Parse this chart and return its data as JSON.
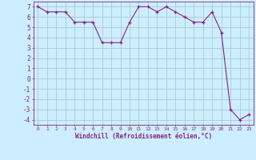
{
  "x": [
    0,
    1,
    2,
    3,
    4,
    5,
    6,
    7,
    8,
    9,
    10,
    11,
    12,
    13,
    14,
    15,
    16,
    17,
    18,
    19,
    20,
    21,
    22,
    23
  ],
  "y": [
    7,
    6.5,
    6.5,
    6.5,
    5.5,
    5.5,
    5.5,
    3.5,
    3.5,
    3.5,
    5.5,
    7,
    7,
    6.5,
    7,
    6.5,
    6,
    5.5,
    5.5,
    6.5,
    4.5,
    -3,
    -4,
    -3.5
  ],
  "line_color": "#882288",
  "marker_color": "#882288",
  "bg_color": "#cceeff",
  "grid_color": "#aacccc",
  "xlabel": "Windchill (Refroidissement éolien,°C)",
  "xlim": [
    -0.5,
    23.5
  ],
  "ylim": [
    -4.5,
    7.5
  ],
  "xticks": [
    0,
    1,
    2,
    3,
    4,
    5,
    6,
    7,
    8,
    9,
    10,
    11,
    12,
    13,
    14,
    15,
    16,
    17,
    18,
    19,
    20,
    21,
    22,
    23
  ],
  "yticks": [
    -4,
    -3,
    -2,
    -1,
    0,
    1,
    2,
    3,
    4,
    5,
    6,
    7
  ],
  "font_family": "monospace"
}
